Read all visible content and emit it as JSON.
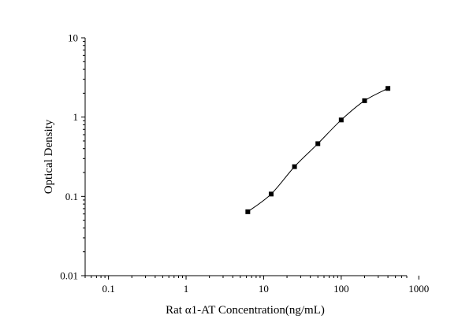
{
  "chart_data": {
    "type": "scatter",
    "title": "",
    "xlabel": "Rat α1-AT Concentration(ng/mL)",
    "ylabel": "Optical Density",
    "x_scale": "log",
    "y_scale": "log",
    "xlim": [
      0.05,
      700
    ],
    "ylim": [
      0.01,
      10
    ],
    "x_ticks": [
      {
        "value": 0.1,
        "label": "0.1"
      },
      {
        "value": 1,
        "label": "1"
      },
      {
        "value": 10,
        "label": "10"
      },
      {
        "value": 100,
        "label": "100"
      },
      {
        "value": 1000,
        "label": "1000"
      }
    ],
    "y_ticks": [
      {
        "value": 0.01,
        "label": "0.01"
      },
      {
        "value": 0.1,
        "label": "0.1"
      },
      {
        "value": 1,
        "label": "1"
      },
      {
        "value": 10,
        "label": "10"
      }
    ],
    "grid": false,
    "series": [
      {
        "x": [
          6.25,
          12.5,
          25,
          50,
          100,
          200,
          400
        ],
        "y": [
          0.064,
          0.107,
          0.237,
          0.462,
          0.92,
          1.61,
          2.3
        ]
      }
    ],
    "marker_color": "#000000",
    "line_color": "#000000"
  }
}
